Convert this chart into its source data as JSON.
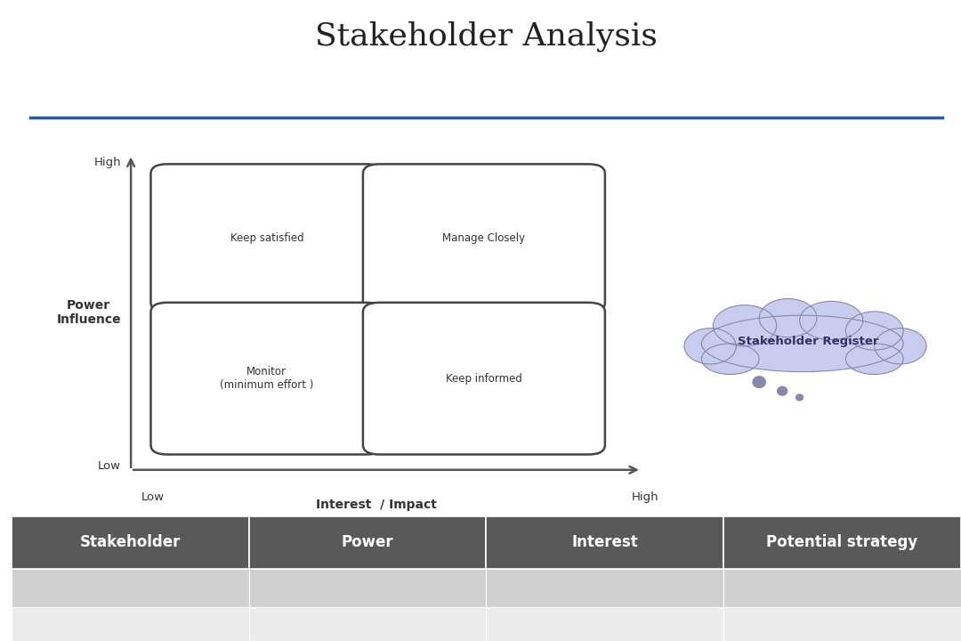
{
  "title": "Stakeholder Analysis",
  "title_fontsize": 26,
  "title_color": "#222222",
  "title_font": "serif",
  "bg_color": "#ffffff",
  "blue_line_color": "#1f5fa6",
  "left_bar_color": "#1f5fa6",
  "left_bar_width": 0.012,
  "quadrant_border_color": "#444444",
  "quadrant_fill_color": "#ffffff",
  "arrow_color": "#bbbbbb",
  "axis_line_color": "#555555",
  "ylabel": "Power\nInfluence",
  "xlabel": "Interest  / Impact",
  "y_high_label": "High",
  "y_low_label": "Low",
  "x_low_label": "Low",
  "x_high_label": "High",
  "quadrant_labels": [
    "Keep satisfied",
    "Manage Closely",
    "Monitor\n(minimum effort )",
    "Keep informed"
  ],
  "quadrant_label_fontsize": 8.5,
  "cloud_text": "Stakeholder Register",
  "cloud_color": "#c8ccee",
  "cloud_border_color": "#8888aa",
  "table_headers": [
    "Stakeholder",
    "Power",
    "Interest",
    "Potential strategy"
  ],
  "table_header_bg": "#595959",
  "table_header_text_color": "#ffffff",
  "table_row1_bg": "#d0d0d0",
  "table_row2_bg": "#ebebeb",
  "table_header_fontsize": 12,
  "footer_bar_color": "#1f5fa6"
}
